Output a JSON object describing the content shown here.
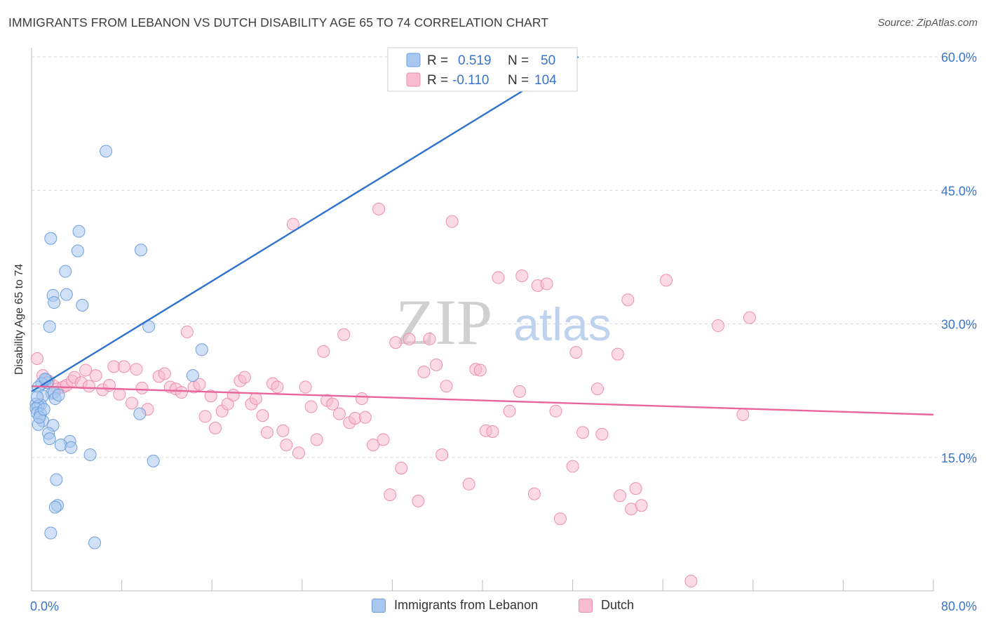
{
  "header": {
    "title": "IMMIGRANTS FROM LEBANON VS DUTCH DISABILITY AGE 65 TO 74 CORRELATION CHART",
    "source": "Source: ZipAtlas.com"
  },
  "watermark": {
    "zip": "ZIP",
    "atlas": "atlas"
  },
  "legend_top": {
    "rows": [
      {
        "r_label": "R =",
        "r_value": "0.519",
        "n_label": "N =",
        "n_value": "50"
      },
      {
        "r_label": "R =",
        "r_value": "-0.110",
        "n_label": "N =",
        "n_value": "104"
      }
    ]
  },
  "legend_bottom": {
    "items": [
      {
        "label": "Immigrants from Lebanon"
      },
      {
        "label": "Dutch"
      }
    ]
  },
  "colors": {
    "blue_fill": "#a9c8f0",
    "blue_stroke": "#6d9fdc",
    "blue_line": "#2f72d0",
    "pink_fill": "#f7bcd0",
    "pink_stroke": "#ec8fb0",
    "pink_line": "#e8669a",
    "tick_label": "#3a74c9",
    "grid": "#d9d9d9"
  },
  "chart_data": {
    "type": "scatter",
    "title": "IMMIGRANTS FROM LEBANON VS DUTCH DISABILITY AGE 65 TO 74 CORRELATION CHART",
    "xlabel": "",
    "ylabel": "Disability Age 65 to 74",
    "xlim": [
      0,
      80
    ],
    "ylim": [
      0,
      61.5
    ],
    "x_tick_labels": [
      "0.0%",
      "80.0%"
    ],
    "y_ticks": [
      15,
      30,
      45,
      60
    ],
    "y_tick_labels": [
      "15.0%",
      "30.0%",
      "45.0%",
      "60.0%"
    ],
    "grid": true,
    "series": [
      {
        "name": "Immigrants from Lebanon",
        "color": "blue",
        "points": [
          [
            6.6,
            49.4
          ],
          [
            1.7,
            39.6
          ],
          [
            4.2,
            40.4
          ],
          [
            4.1,
            38.2
          ],
          [
            9.7,
            38.3
          ],
          [
            3.0,
            35.9
          ],
          [
            1.9,
            33.2
          ],
          [
            3.1,
            33.3
          ],
          [
            2.0,
            32.4
          ],
          [
            4.5,
            32.1
          ],
          [
            1.6,
            29.7
          ],
          [
            10.4,
            29.7
          ],
          [
            15.1,
            27.1
          ],
          [
            14.3,
            24.2
          ],
          [
            1.3,
            23.7
          ],
          [
            1.4,
            23.4
          ],
          [
            0.9,
            23.3
          ],
          [
            0.6,
            22.9
          ],
          [
            1.8,
            22.2
          ],
          [
            2.0,
            22.3
          ],
          [
            1.0,
            21.9
          ],
          [
            2.1,
            21.6
          ],
          [
            0.4,
            21.0
          ],
          [
            0.8,
            20.9
          ],
          [
            0.6,
            20.8
          ],
          [
            0.4,
            20.5
          ],
          [
            0.5,
            20.0
          ],
          [
            0.8,
            19.9
          ],
          [
            9.6,
            19.9
          ],
          [
            1.0,
            19.1
          ],
          [
            0.6,
            18.7
          ],
          [
            1.9,
            18.6
          ],
          [
            1.5,
            17.7
          ],
          [
            1.6,
            17.1
          ],
          [
            3.4,
            16.8
          ],
          [
            2.6,
            16.4
          ],
          [
            3.5,
            16.1
          ],
          [
            5.2,
            15.3
          ],
          [
            10.8,
            14.6
          ],
          [
            2.2,
            12.5
          ],
          [
            2.3,
            9.6
          ],
          [
            2.1,
            9.4
          ],
          [
            1.7,
            6.5
          ],
          [
            5.6,
            5.4
          ],
          [
            0.5,
            21.8
          ],
          [
            1.2,
            23.8
          ],
          [
            0.7,
            19.5
          ],
          [
            1.1,
            20.4
          ],
          [
            2.4,
            22.0
          ],
          [
            43.2,
            60.2
          ]
        ],
        "trend": {
          "x": [
            0,
            48.5
          ],
          "y": [
            22.4,
            60.0
          ]
        }
      },
      {
        "name": "Dutch",
        "color": "pink",
        "points": [
          [
            0.5,
            26.1
          ],
          [
            1.0,
            24.2
          ],
          [
            1.5,
            23.6
          ],
          [
            2.0,
            23.0
          ],
          [
            2.3,
            22.7
          ],
          [
            2.8,
            22.9
          ],
          [
            3.1,
            23.1
          ],
          [
            3.6,
            23.6
          ],
          [
            3.8,
            24.0
          ],
          [
            4.4,
            23.4
          ],
          [
            4.8,
            24.8
          ],
          [
            5.1,
            23.0
          ],
          [
            5.7,
            24.2
          ],
          [
            6.3,
            22.6
          ],
          [
            6.9,
            23.1
          ],
          [
            7.3,
            25.2
          ],
          [
            7.8,
            22.1
          ],
          [
            8.2,
            25.2
          ],
          [
            8.9,
            21.1
          ],
          [
            9.3,
            24.9
          ],
          [
            9.8,
            22.8
          ],
          [
            10.3,
            20.4
          ],
          [
            11.3,
            24.1
          ],
          [
            11.8,
            24.4
          ],
          [
            12.3,
            22.9
          ],
          [
            12.8,
            22.7
          ],
          [
            13.3,
            22.3
          ],
          [
            13.8,
            29.1
          ],
          [
            14.4,
            22.9
          ],
          [
            14.9,
            23.2
          ],
          [
            15.4,
            19.6
          ],
          [
            15.9,
            21.9
          ],
          [
            16.3,
            18.3
          ],
          [
            16.9,
            20.2
          ],
          [
            17.4,
            21.0
          ],
          [
            17.9,
            22.0
          ],
          [
            18.5,
            23.6
          ],
          [
            18.9,
            24.0
          ],
          [
            19.5,
            21.0
          ],
          [
            19.9,
            21.6
          ],
          [
            20.5,
            19.7
          ],
          [
            20.9,
            17.8
          ],
          [
            21.4,
            23.3
          ],
          [
            21.8,
            22.9
          ],
          [
            22.3,
            18.0
          ],
          [
            22.6,
            16.4
          ],
          [
            23.2,
            41.2
          ],
          [
            23.7,
            15.5
          ],
          [
            24.3,
            22.9
          ],
          [
            24.8,
            20.7
          ],
          [
            25.3,
            17.0
          ],
          [
            25.9,
            26.9
          ],
          [
            26.2,
            21.4
          ],
          [
            26.7,
            21.0
          ],
          [
            27.3,
            19.9
          ],
          [
            27.7,
            28.8
          ],
          [
            28.2,
            18.9
          ],
          [
            28.7,
            19.4
          ],
          [
            29.3,
            21.6
          ],
          [
            29.6,
            19.5
          ],
          [
            30.3,
            16.4
          ],
          [
            30.8,
            42.9
          ],
          [
            31.2,
            17.0
          ],
          [
            31.8,
            10.8
          ],
          [
            32.3,
            27.9
          ],
          [
            32.8,
            13.8
          ],
          [
            33.5,
            28.3
          ],
          [
            34.3,
            10.1
          ],
          [
            34.8,
            24.6
          ],
          [
            35.3,
            28.3
          ],
          [
            35.9,
            25.4
          ],
          [
            36.4,
            15.3
          ],
          [
            36.8,
            23.0
          ],
          [
            37.3,
            41.5
          ],
          [
            38.8,
            12.0
          ],
          [
            39.4,
            24.9
          ],
          [
            39.8,
            24.8
          ],
          [
            40.3,
            18.0
          ],
          [
            40.9,
            17.9
          ],
          [
            41.4,
            35.2
          ],
          [
            42.4,
            20.2
          ],
          [
            43.3,
            22.4
          ],
          [
            43.5,
            35.4
          ],
          [
            44.6,
            10.9
          ],
          [
            44.9,
            34.3
          ],
          [
            45.7,
            34.5
          ],
          [
            46.5,
            20.2
          ],
          [
            46.9,
            8.1
          ],
          [
            48.0,
            14.0
          ],
          [
            48.3,
            26.8
          ],
          [
            48.9,
            17.8
          ],
          [
            50.2,
            22.7
          ],
          [
            50.6,
            17.6
          ],
          [
            52.0,
            26.6
          ],
          [
            52.2,
            10.7
          ],
          [
            52.9,
            32.7
          ],
          [
            53.2,
            9.2
          ],
          [
            53.6,
            11.5
          ],
          [
            54.1,
            9.6
          ],
          [
            56.3,
            34.9
          ],
          [
            58.5,
            1.1
          ],
          [
            60.9,
            29.8
          ],
          [
            63.1,
            19.8
          ],
          [
            63.7,
            30.7
          ]
        ],
        "trend": {
          "x": [
            0,
            80
          ],
          "y": [
            23.0,
            19.8
          ]
        }
      }
    ]
  }
}
